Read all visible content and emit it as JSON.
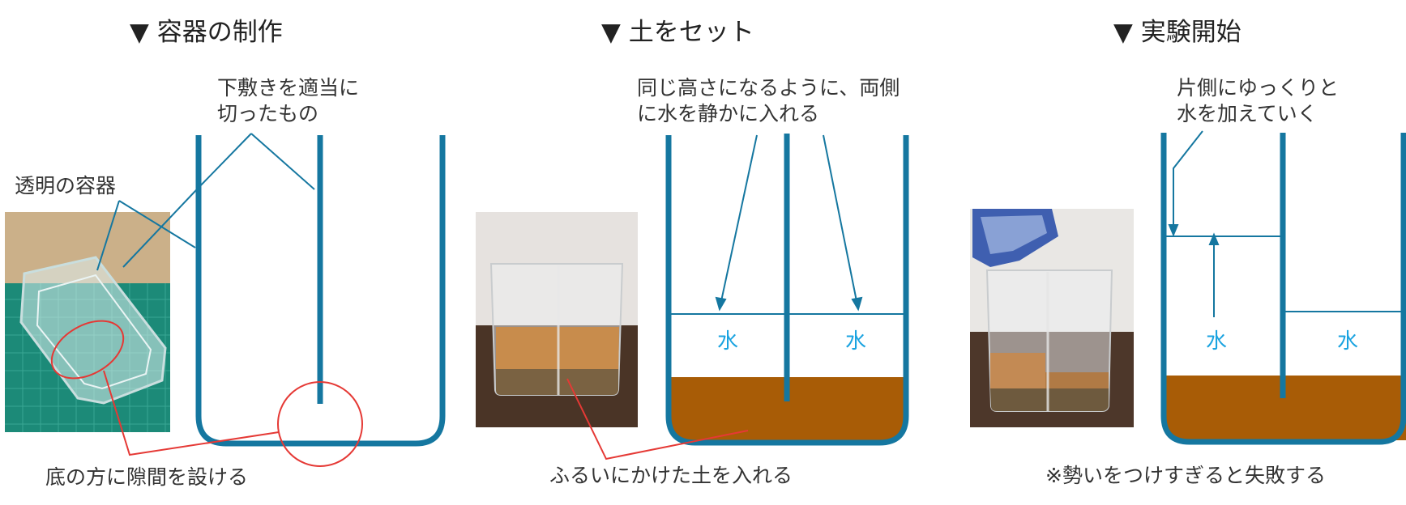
{
  "colors": {
    "container": "#1577a0",
    "leader": "#1577a0",
    "soil": "#a85c06",
    "water_text": "#1aa3e0",
    "highlight": "#e53935"
  },
  "panels": [
    {
      "title": "▼ 容器の制作",
      "label_divider_line1": "下敷きを適当に",
      "label_divider_line2": "切ったもの",
      "label_container": "透明の容器",
      "caption": "底の方に隙間を設ける"
    },
    {
      "title": "▼ 土をセット",
      "label_line1": "同じ高さになるように、両側",
      "label_line2": "に水を静かに入れる",
      "water_left": "水",
      "water_right": "水",
      "caption": "ふるいにかけた土を入れる"
    },
    {
      "title": "▼ 実験開始",
      "label_line1": "片側にゆっくりと",
      "label_line2": "水を加えていく",
      "water_left": "水",
      "water_right": "水",
      "caption": "※勢いをつけすぎると失敗する"
    }
  ]
}
